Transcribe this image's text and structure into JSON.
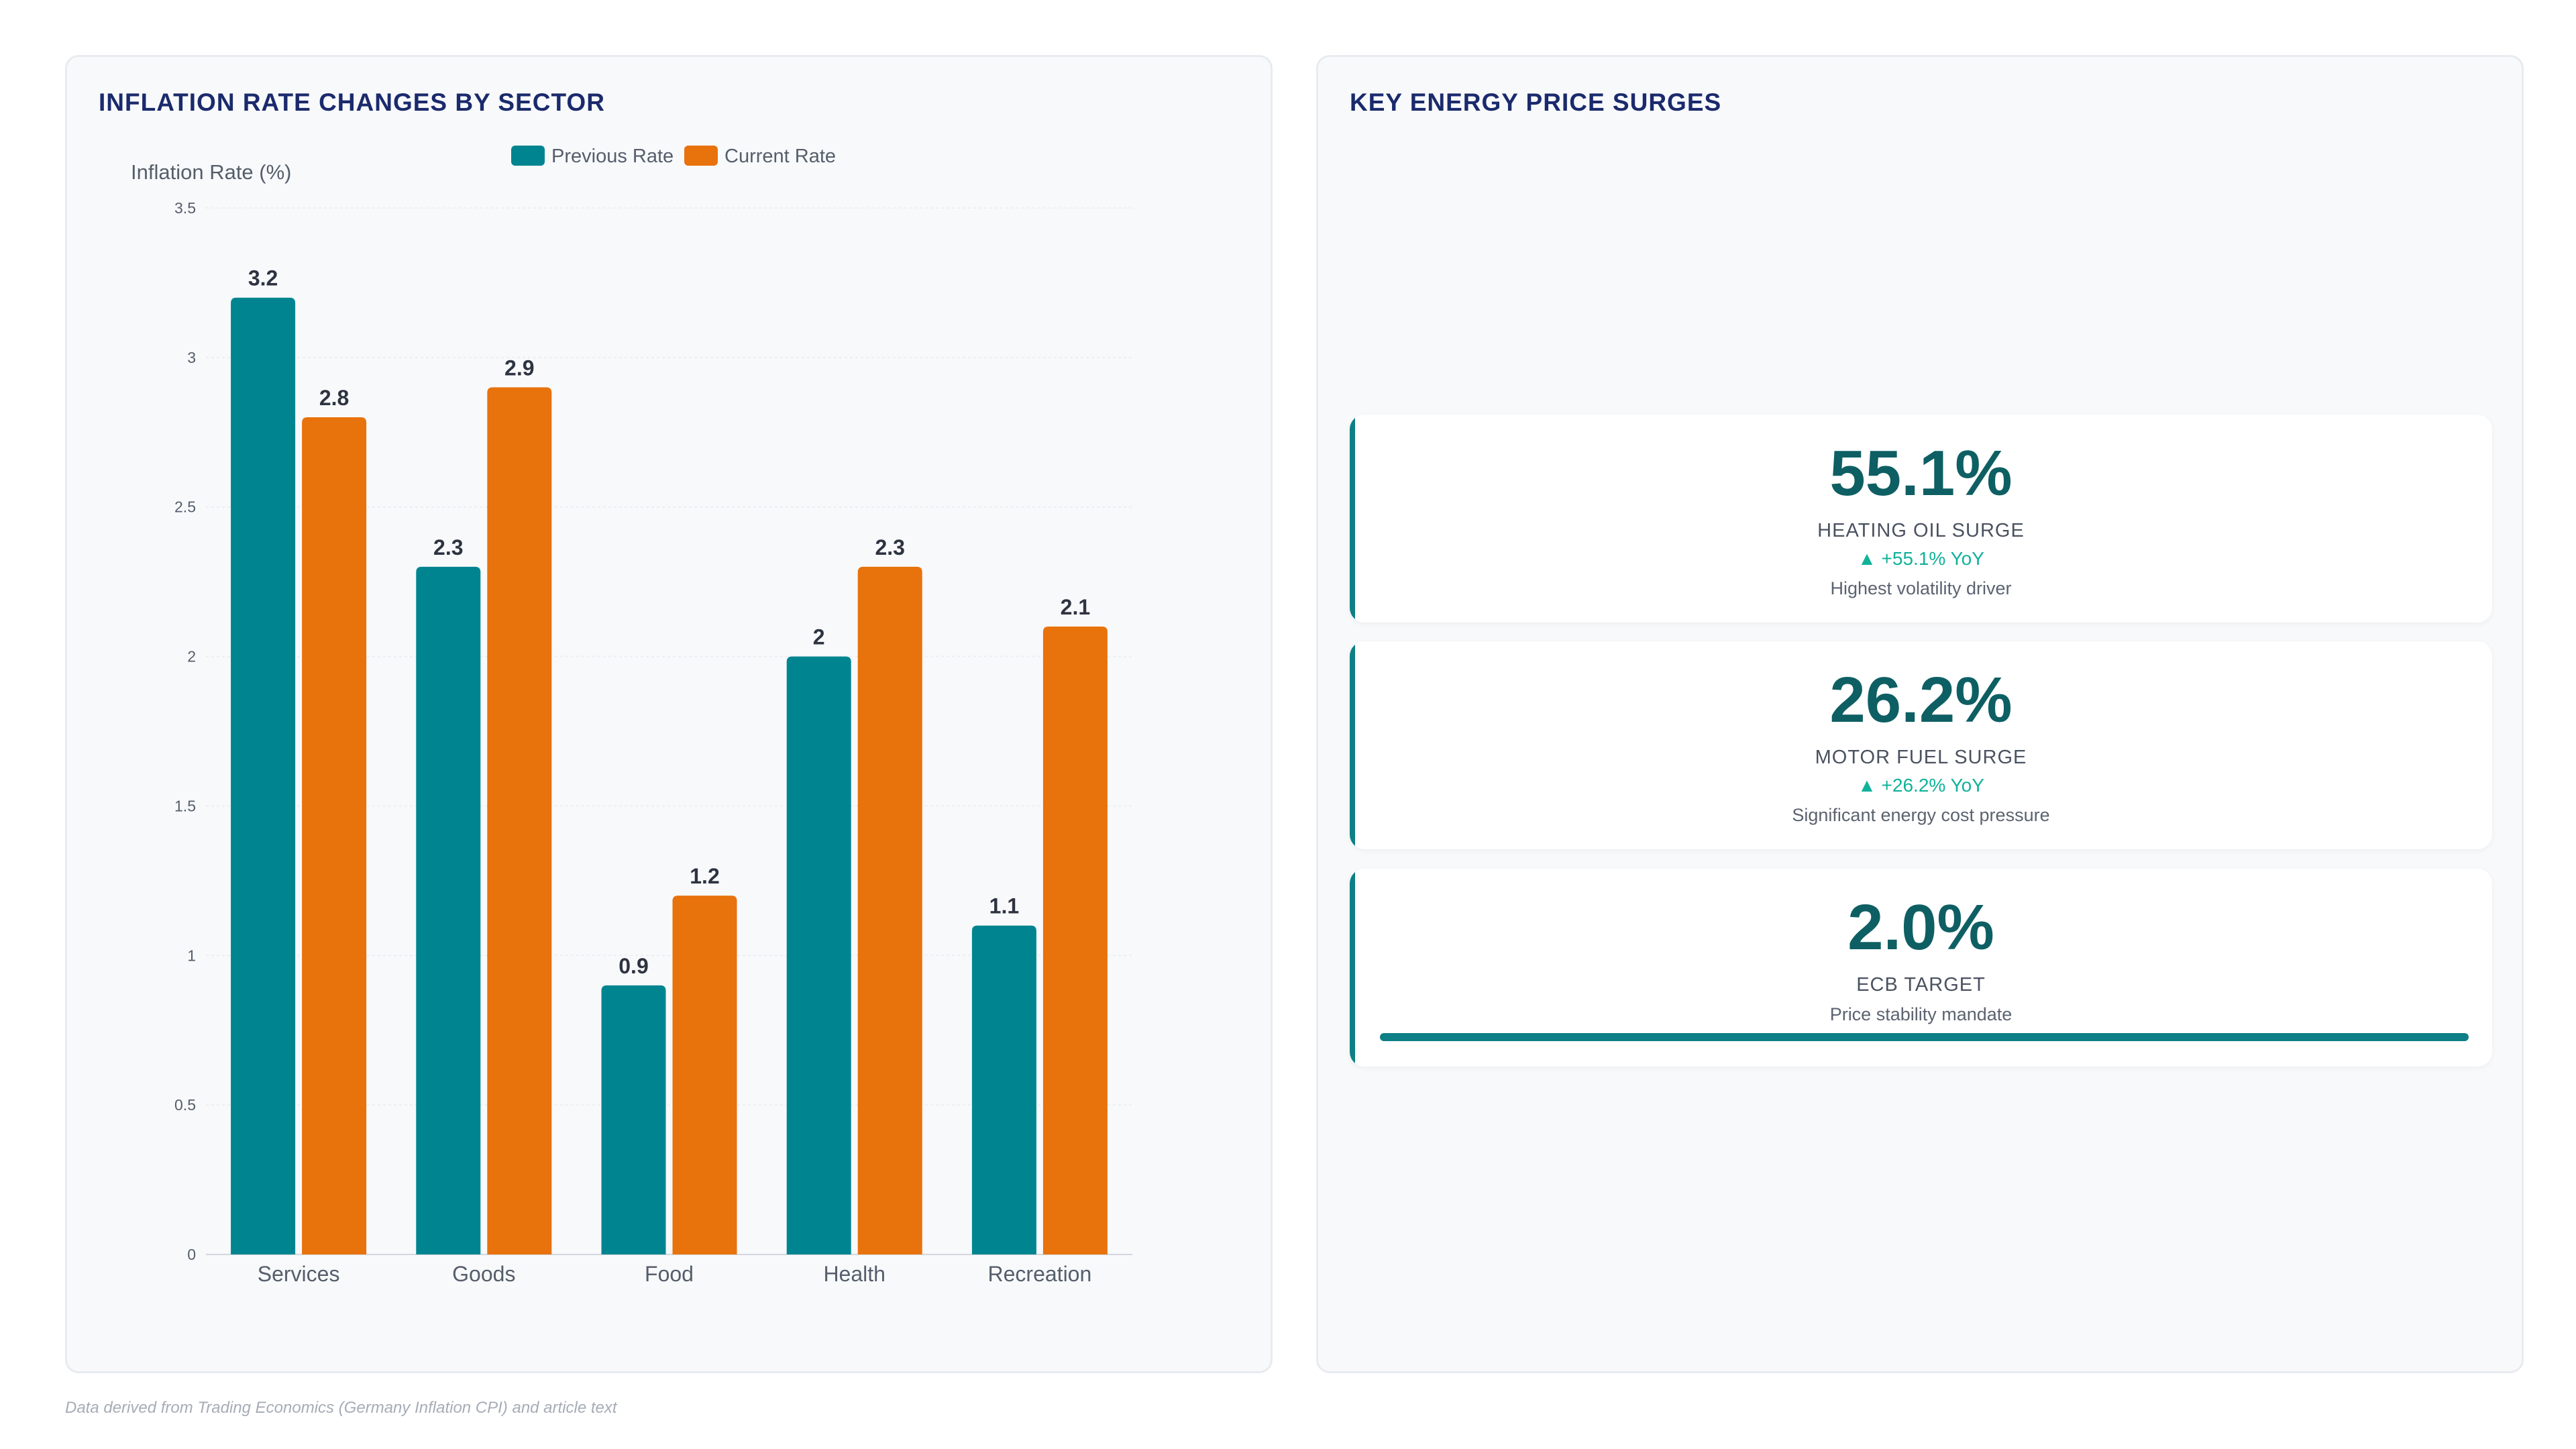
{
  "left_panel": {
    "title": "INFLATION RATE CHANGES BY SECTOR"
  },
  "right_panel": {
    "title": "KEY ENERGY PRICE SURGES",
    "cards": [
      {
        "value": "55.1%",
        "label": "HEATING OIL SURGE",
        "change": "▲ +55.1% YoY",
        "note": "Highest volatility driver"
      },
      {
        "value": "26.2%",
        "label": "MOTOR FUEL SURGE",
        "change": "▲ +26.2% YoY",
        "note": "Significant energy cost pressure"
      },
      {
        "value": "2.0%",
        "label": "ECB TARGET",
        "note": "Price stability mandate",
        "progress": 1.0
      }
    ]
  },
  "footnote": "Data derived from Trading Economics (Germany Inflation CPI) and article text",
  "colors": {
    "previous": "#008590",
    "current": "#e8720c",
    "accent": "#0e7f86",
    "title": "#1a2a6c",
    "change": "#10b29a"
  },
  "chart_data": {
    "type": "bar",
    "title": "INFLATION RATE CHANGES BY SECTOR",
    "categories": [
      "Services",
      "Goods",
      "Food",
      "Health",
      "Recreation"
    ],
    "series": [
      {
        "name": "Previous Rate",
        "values": [
          3.2,
          2.3,
          0.9,
          2,
          1.1
        ],
        "color": "#008590"
      },
      {
        "name": "Current Rate",
        "values": [
          2.8,
          2.9,
          1.2,
          2.3,
          2.1
        ],
        "color": "#e8720c"
      }
    ],
    "ylabel": "Inflation Rate (%)",
    "xlabel": "",
    "ylim": [
      0,
      3.5
    ],
    "yticks": [
      "0",
      "0.5",
      "1",
      "1.5",
      "2",
      "2.5",
      "3",
      "3.5"
    ],
    "grid": true,
    "legend": "top-center"
  }
}
